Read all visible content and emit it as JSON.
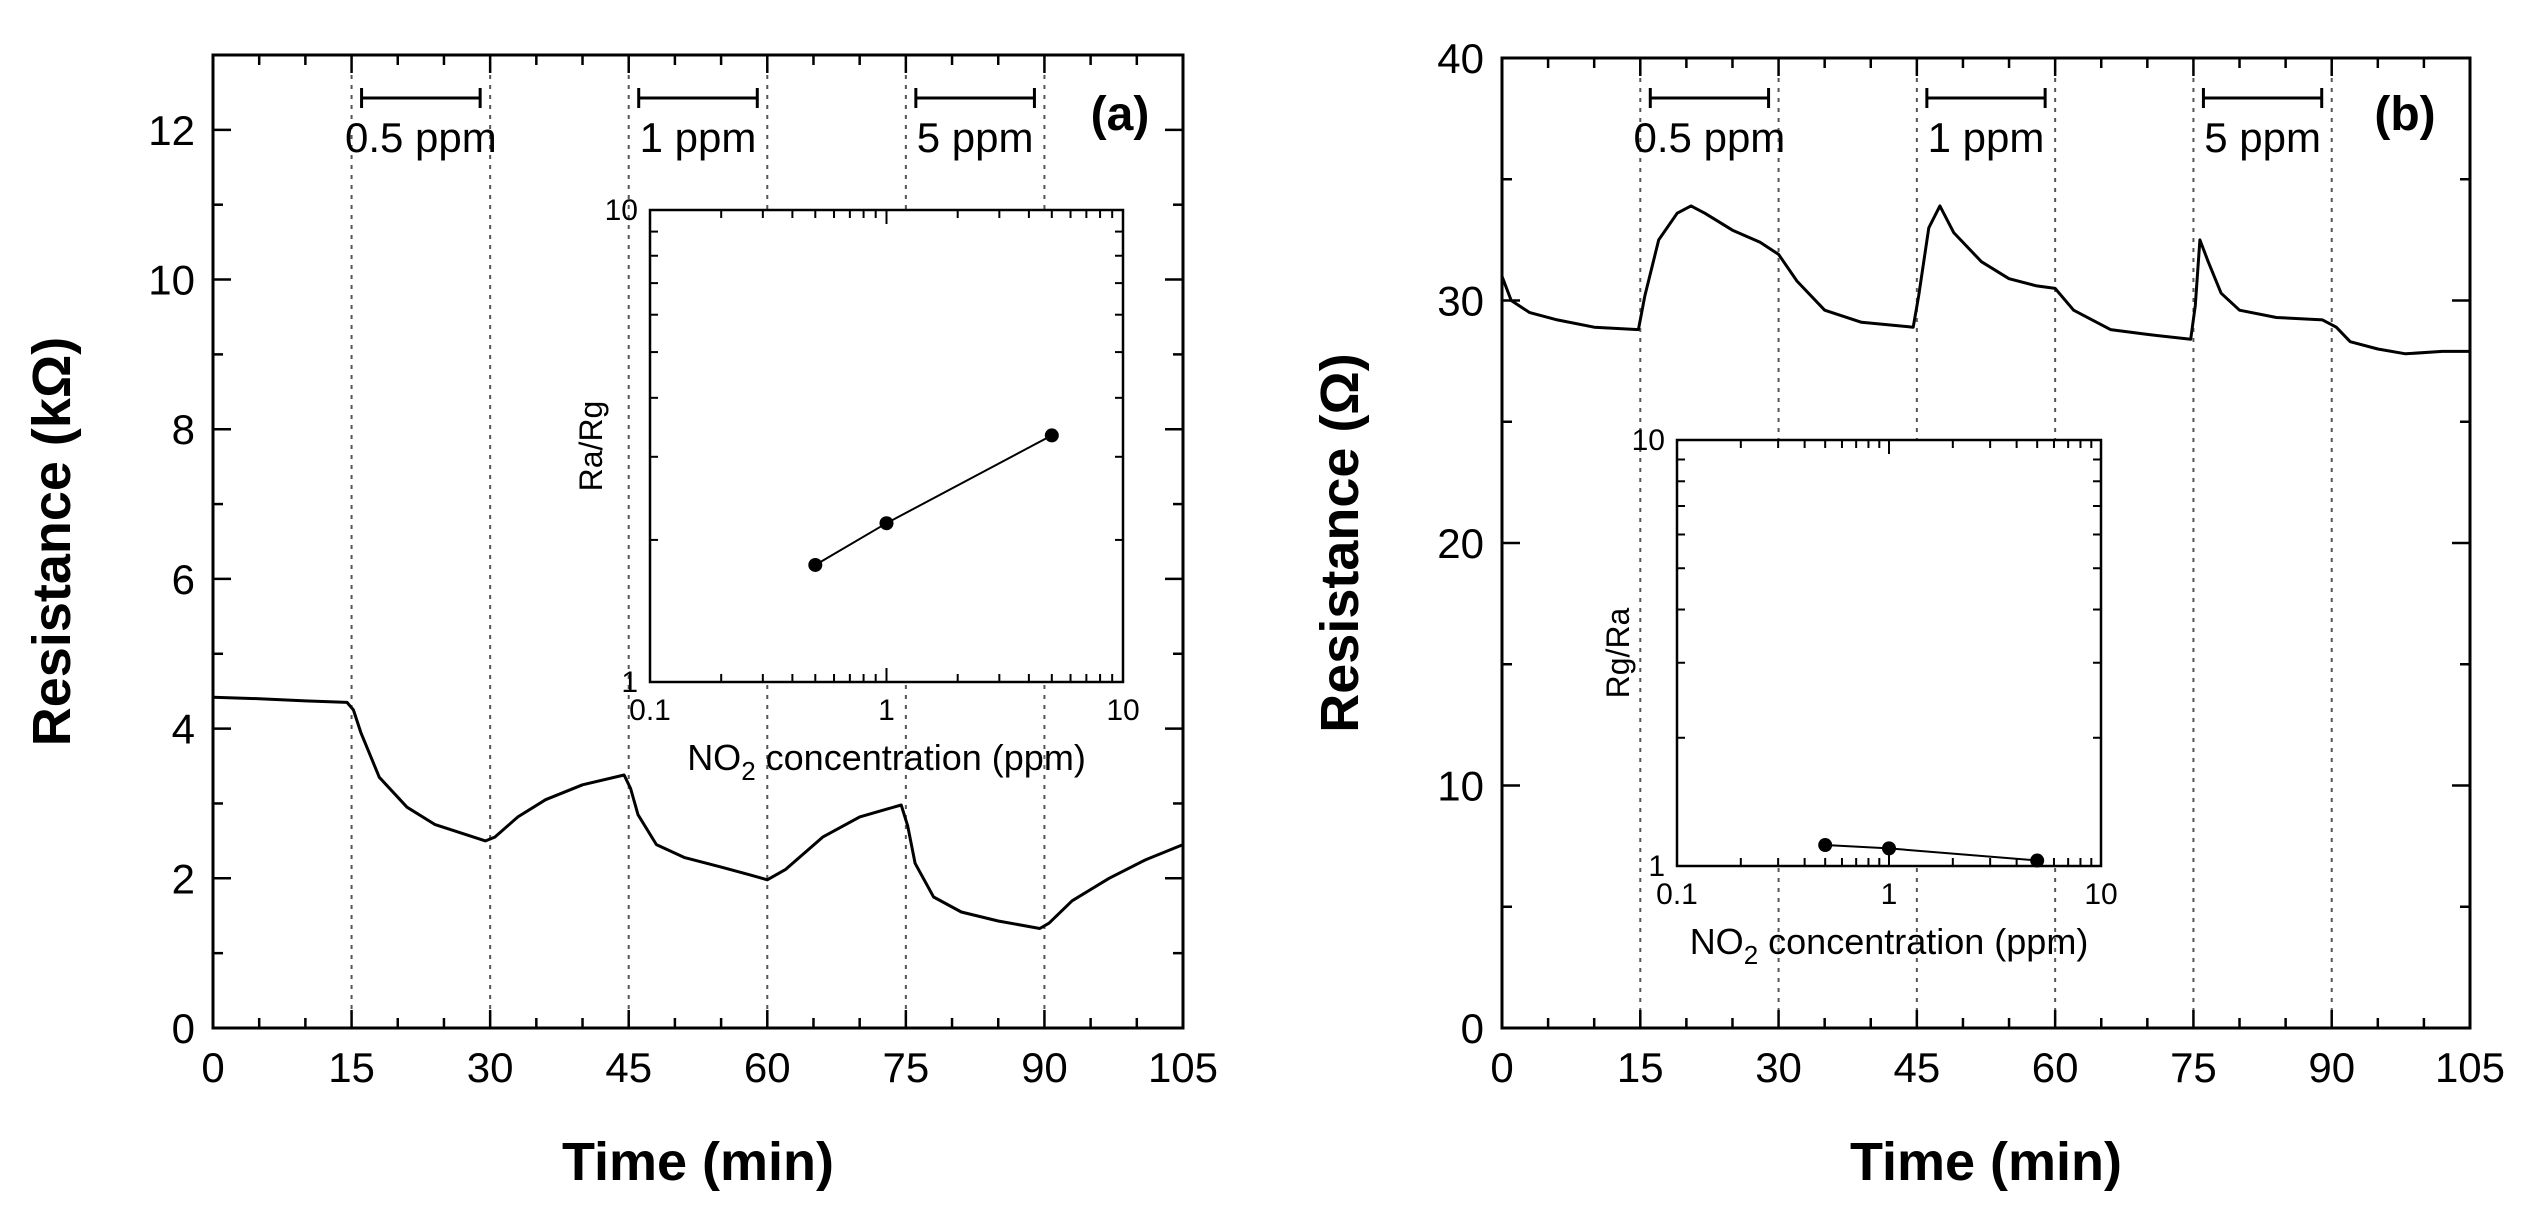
{
  "chart_data": [
    {
      "type": "line",
      "panel_label": "(a)",
      "xlabel": "Time (min)",
      "ylabel": "Resistance (kΩ)",
      "xlim": [
        0,
        105
      ],
      "ylim": [
        0,
        13
      ],
      "xticks": [
        0,
        15,
        30,
        45,
        60,
        75,
        90,
        105
      ],
      "yticks": [
        0,
        2,
        4,
        6,
        8,
        10,
        12
      ],
      "exposure_markers": [
        15,
        30,
        45,
        60,
        75,
        90
      ],
      "exposures": [
        {
          "label": "0.5 ppm",
          "start": 15,
          "end": 30
        },
        {
          "label": "1 ppm",
          "start": 45,
          "end": 60
        },
        {
          "label": "5 ppm",
          "start": 75,
          "end": 90
        }
      ],
      "series": [
        {
          "name": "Resistance",
          "x": [
            0,
            5,
            10,
            14.5,
            15.2,
            16,
            18,
            21,
            24,
            27,
            29.5,
            30.5,
            33,
            36,
            40,
            44.5,
            45.2,
            46,
            48,
            51,
            55,
            58,
            60,
            62,
            66,
            70,
            74.5,
            75.2,
            76,
            78,
            81,
            85,
            89.5,
            90.5,
            93,
            97,
            101,
            105
          ],
          "y": [
            4.42,
            4.4,
            4.37,
            4.35,
            4.25,
            3.95,
            3.35,
            2.95,
            2.72,
            2.6,
            2.5,
            2.55,
            2.82,
            3.05,
            3.25,
            3.38,
            3.2,
            2.85,
            2.45,
            2.28,
            2.15,
            2.05,
            1.98,
            2.12,
            2.55,
            2.82,
            2.98,
            2.7,
            2.2,
            1.75,
            1.55,
            1.43,
            1.33,
            1.4,
            1.7,
            2.0,
            2.25,
            2.45
          ]
        }
      ],
      "inset": {
        "type": "scatter",
        "xscale": "log",
        "yscale": "log",
        "xlim": [
          0.1,
          10
        ],
        "ylim": [
          1,
          10
        ],
        "xticks": [
          "0.1",
          "1",
          "10"
        ],
        "yticks": [
          "1",
          "10"
        ],
        "xlabel_main": "NO",
        "xlabel_sub": "2",
        "xlabel_rest": " concentration (ppm)",
        "ylabel": "Ra/Rg",
        "x": [
          0.5,
          1,
          5
        ],
        "y": [
          1.77,
          2.17,
          3.33
        ]
      }
    },
    {
      "type": "line",
      "panel_label": "(b)",
      "xlabel": "Time (min)",
      "ylabel": "Resistance (Ω)",
      "xlim": [
        0,
        105
      ],
      "ylim": [
        0,
        40
      ],
      "xticks": [
        0,
        15,
        30,
        45,
        60,
        75,
        90,
        105
      ],
      "yticks": [
        0,
        10,
        20,
        30,
        40
      ],
      "exposure_markers": [
        15,
        30,
        45,
        60,
        75,
        90
      ],
      "exposures": [
        {
          "label": "0.5 ppm",
          "start": 15,
          "end": 30
        },
        {
          "label": "1 ppm",
          "start": 45,
          "end": 60
        },
        {
          "label": "5 ppm",
          "start": 75,
          "end": 90
        }
      ],
      "series": [
        {
          "name": "Resistance",
          "x": [
            0,
            1,
            3,
            6,
            10,
            14.8,
            15.5,
            17,
            19,
            20.5,
            22,
            25,
            28,
            30,
            32,
            35,
            39,
            44.6,
            45.2,
            46.3,
            47.5,
            49,
            52,
            55,
            58,
            60,
            62,
            66,
            70,
            74.7,
            75.2,
            75.7,
            76.6,
            78,
            80,
            84,
            89,
            90.5,
            92,
            95,
            98,
            102,
            105
          ],
          "y": [
            31.0,
            30.0,
            29.5,
            29.2,
            28.9,
            28.8,
            30.2,
            32.5,
            33.6,
            33.9,
            33.6,
            32.9,
            32.4,
            31.9,
            30.8,
            29.6,
            29.1,
            28.9,
            30.2,
            33.0,
            33.9,
            32.8,
            31.6,
            30.9,
            30.6,
            30.5,
            29.6,
            28.8,
            28.6,
            28.4,
            29.8,
            32.5,
            31.6,
            30.3,
            29.6,
            29.3,
            29.2,
            28.9,
            28.3,
            28.0,
            27.8,
            27.9,
            27.9
          ]
        }
      ],
      "inset": {
        "type": "scatter",
        "xscale": "log",
        "yscale": "log",
        "xlim": [
          0.1,
          10
        ],
        "ylim": [
          1,
          10
        ],
        "xticks": [
          "0.1",
          "1",
          "10"
        ],
        "yticks": [
          "1",
          "10"
        ],
        "xlabel_main": "NO",
        "xlabel_sub": "2",
        "xlabel_rest": " concentration (ppm)",
        "ylabel": "Rg/Ra",
        "x": [
          0.5,
          1,
          5
        ],
        "y": [
          1.12,
          1.1,
          1.03
        ]
      }
    }
  ]
}
